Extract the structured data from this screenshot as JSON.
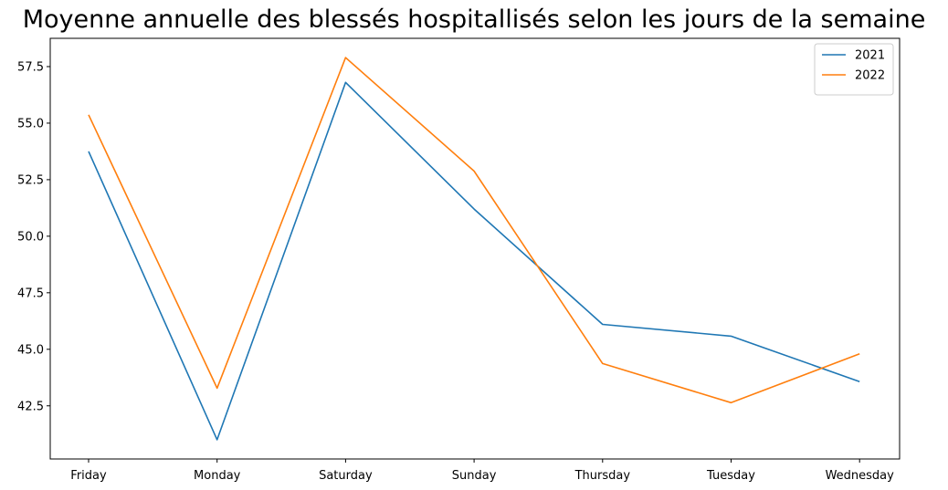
{
  "chart_data": {
    "type": "line",
    "title": "Moyenne annuelle des blessés hospitallisés selon les jours de la semaine",
    "xlabel": "",
    "ylabel": "",
    "categories": [
      "Friday",
      "Monday",
      "Saturday",
      "Sunday",
      "Thursday",
      "Tuesday",
      "Wednesday"
    ],
    "series": [
      {
        "name": "2021",
        "color": "#1f77b4",
        "values": [
          53.75,
          41.0,
          56.8,
          51.2,
          46.1,
          45.58,
          43.57
        ]
      },
      {
        "name": "2022",
        "color": "#ff7f0e",
        "values": [
          55.37,
          43.28,
          57.9,
          52.88,
          44.37,
          42.64,
          44.8
        ]
      }
    ],
    "yticks": [
      42.5,
      45.0,
      47.5,
      50.0,
      52.5,
      55.0,
      57.5
    ],
    "ytick_labels": [
      "42.5",
      "45.0",
      "47.5",
      "50.0",
      "52.5",
      "55.0",
      "57.5"
    ],
    "ylim": [
      40.15,
      58.75
    ],
    "grid": false,
    "legend_position": "upper right"
  }
}
